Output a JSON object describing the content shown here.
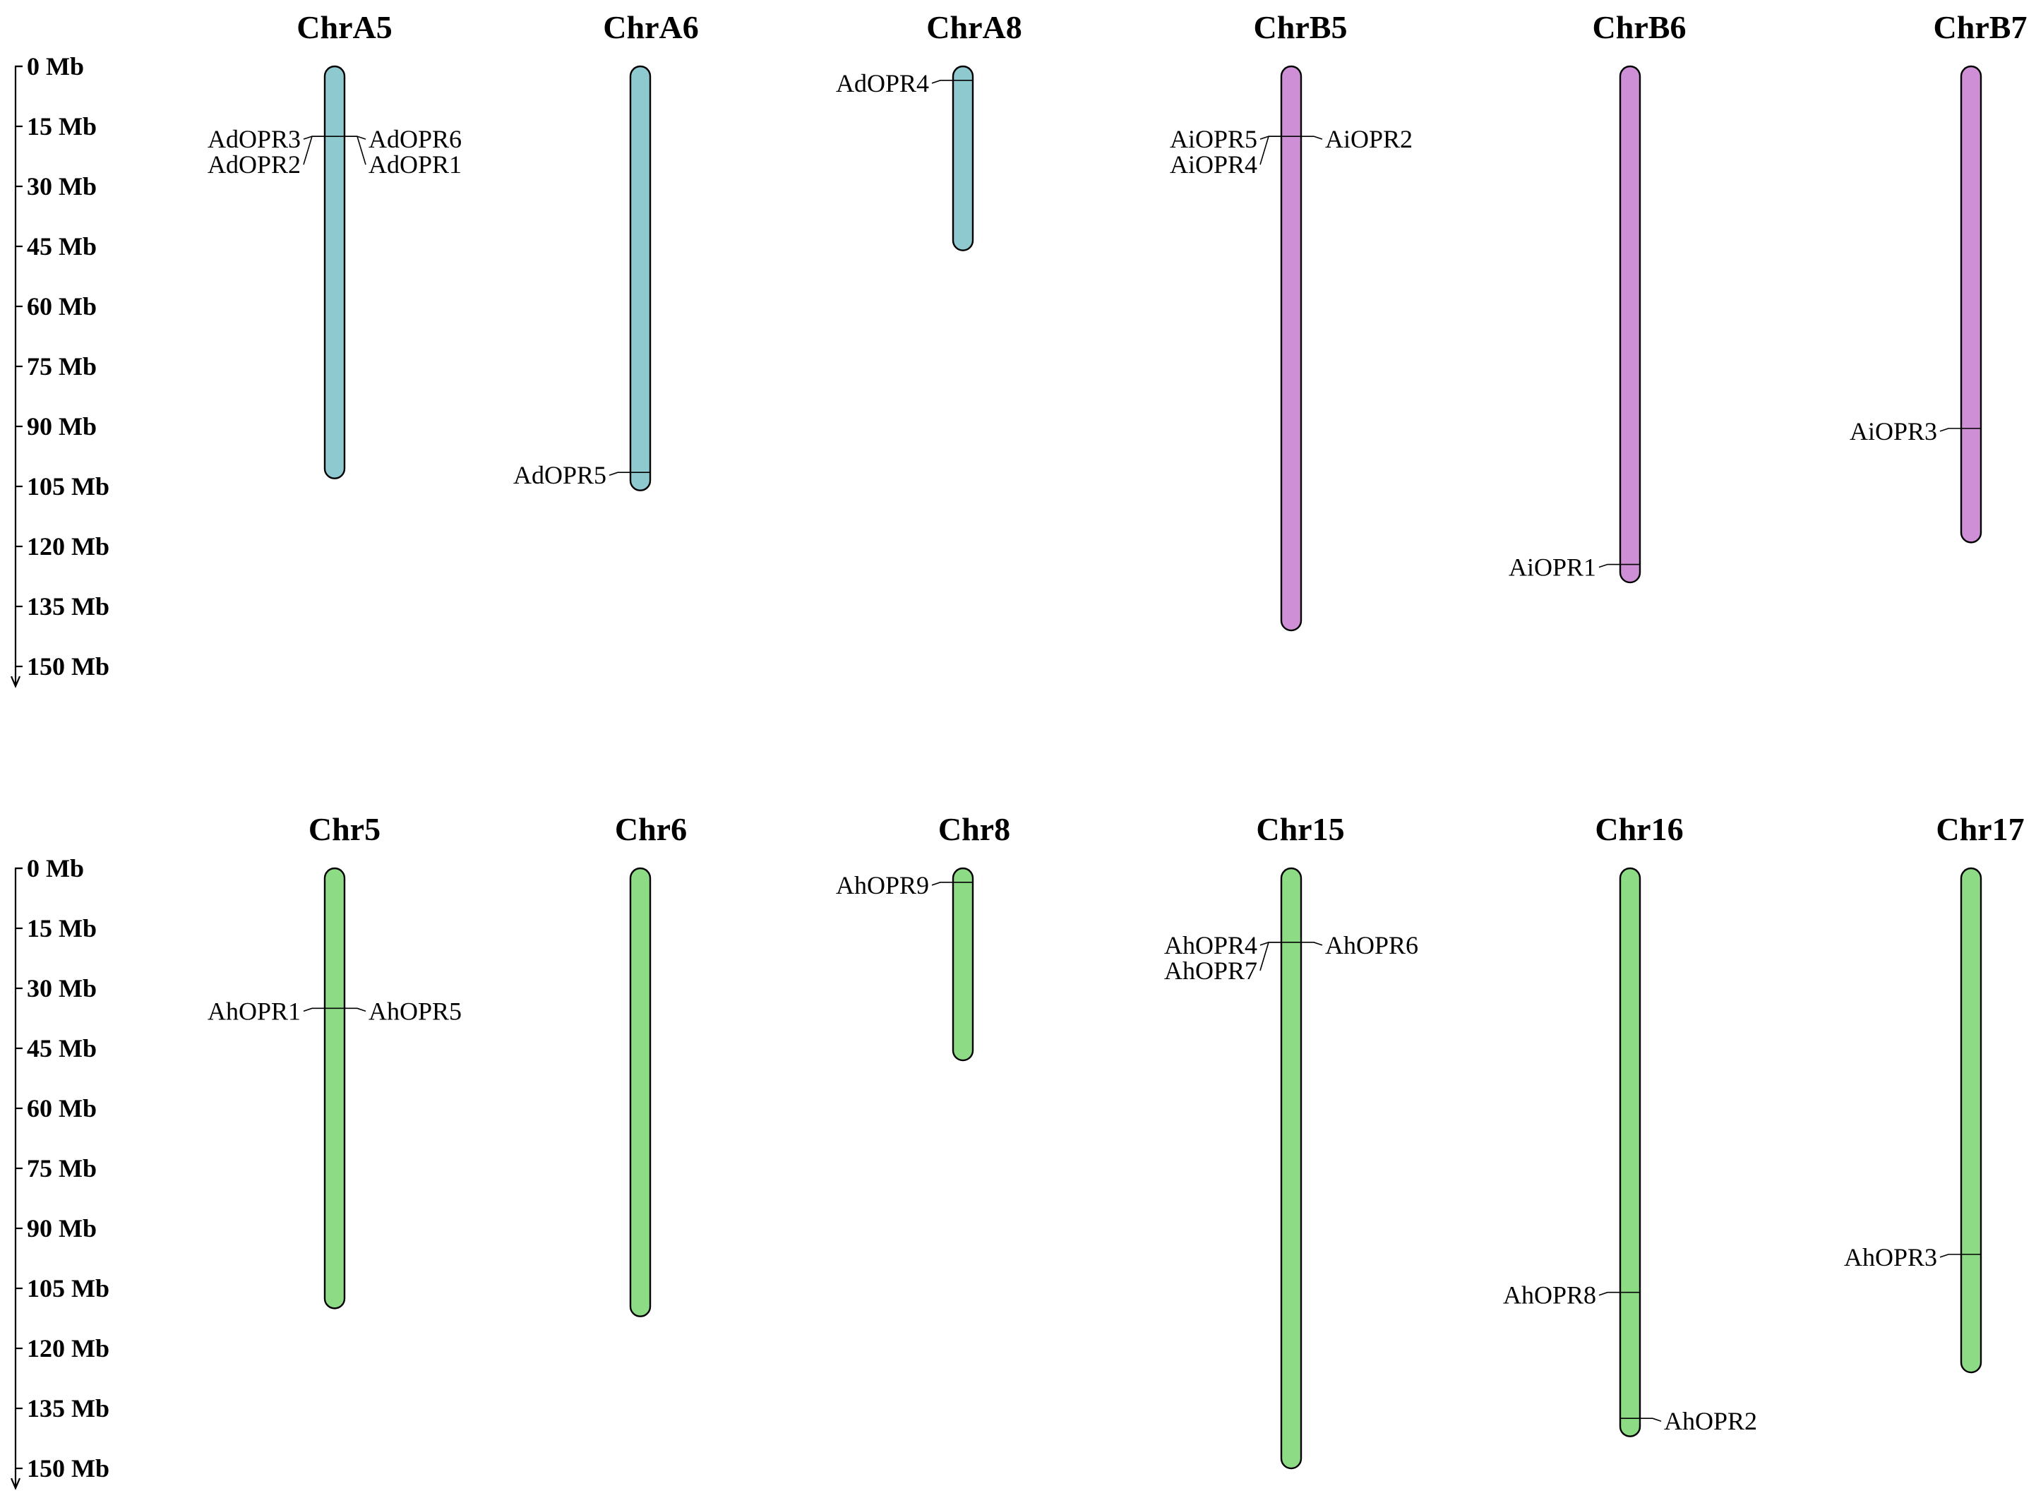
{
  "colors": {
    "group_A": "#8ec9cf",
    "group_B": "#cf8fd6",
    "group_H": "#8ddc85",
    "outline": "#000000"
  },
  "panels": [
    {
      "axis": {
        "unit": "Mb",
        "max": 150,
        "step": 15,
        "ticks": [
          "0 Mb",
          "15 Mb",
          "30 Mb",
          "45 Mb",
          "60 Mb",
          "75 Mb",
          "90 Mb",
          "105 Mb",
          "120 Mb",
          "135 Mb",
          "150 Mb"
        ]
      },
      "chromosomes": [
        {
          "name": "ChrA5",
          "length": 103,
          "color_key": "group_A",
          "genes": [
            {
              "name": "AdOPR3",
              "pos": 17.5,
              "side": "left"
            },
            {
              "name": "AdOPR2",
              "pos": 17.5,
              "side": "left"
            },
            {
              "name": "AdOPR6",
              "pos": 17.5,
              "side": "right"
            },
            {
              "name": "AdOPR1",
              "pos": 17.5,
              "side": "right"
            }
          ]
        },
        {
          "name": "ChrA6",
          "length": 106,
          "color_key": "group_A",
          "genes": [
            {
              "name": "AdOPR5",
              "pos": 101.5,
              "side": "left"
            }
          ]
        },
        {
          "name": "ChrA8",
          "length": 46,
          "color_key": "group_A",
          "genes": [
            {
              "name": "AdOPR4",
              "pos": 3.5,
              "side": "left"
            }
          ]
        },
        {
          "name": "ChrB5",
          "length": 141,
          "color_key": "group_B",
          "genes": [
            {
              "name": "AiOPR5",
              "pos": 17.5,
              "side": "left"
            },
            {
              "name": "AiOPR4",
              "pos": 17.5,
              "side": "left"
            },
            {
              "name": "AiOPR2",
              "pos": 17.5,
              "side": "right"
            }
          ]
        },
        {
          "name": "ChrB6",
          "length": 129,
          "color_key": "group_B",
          "genes": [
            {
              "name": "AiOPR1",
              "pos": 124.5,
              "side": "left"
            }
          ]
        },
        {
          "name": "ChrB7",
          "length": 119,
          "color_key": "group_B",
          "genes": [
            {
              "name": "AiOPR3",
              "pos": 90.5,
              "side": "left"
            }
          ]
        }
      ]
    },
    {
      "axis": {
        "unit": "Mb",
        "max": 150,
        "step": 15,
        "ticks": [
          "0 Mb",
          "15 Mb",
          "30 Mb",
          "45 Mb",
          "60 Mb",
          "75 Mb",
          "90 Mb",
          "105 Mb",
          "120 Mb",
          "135 Mb",
          "150 Mb"
        ]
      },
      "chromosomes": [
        {
          "name": "Chr5",
          "length": 110,
          "color_key": "group_H",
          "genes": [
            {
              "name": "AhOPR1",
              "pos": 35,
              "side": "left"
            },
            {
              "name": "AhOPR5",
              "pos": 35,
              "side": "right"
            }
          ]
        },
        {
          "name": "Chr6",
          "length": 112,
          "color_key": "group_H",
          "genes": []
        },
        {
          "name": "Chr8",
          "length": 48,
          "color_key": "group_H",
          "genes": [
            {
              "name": "AhOPR9",
              "pos": 3.5,
              "side": "left"
            }
          ]
        },
        {
          "name": "Chr15",
          "length": 150,
          "color_key": "group_H",
          "genes": [
            {
              "name": "AhOPR4",
              "pos": 18.5,
              "side": "left"
            },
            {
              "name": "AhOPR7",
              "pos": 18.5,
              "side": "left"
            },
            {
              "name": "AhOPR6",
              "pos": 18.5,
              "side": "right"
            }
          ]
        },
        {
          "name": "Chr16",
          "length": 142,
          "color_key": "group_H",
          "genes": [
            {
              "name": "AhOPR8",
              "pos": 106,
              "side": "left"
            },
            {
              "name": "AhOPR2",
              "pos": 137.5,
              "side": "right"
            }
          ]
        },
        {
          "name": "Chr17",
          "length": 126,
          "color_key": "group_H",
          "genes": [
            {
              "name": "AhOPR3",
              "pos": 96.5,
              "side": "left"
            }
          ]
        }
      ]
    }
  ]
}
